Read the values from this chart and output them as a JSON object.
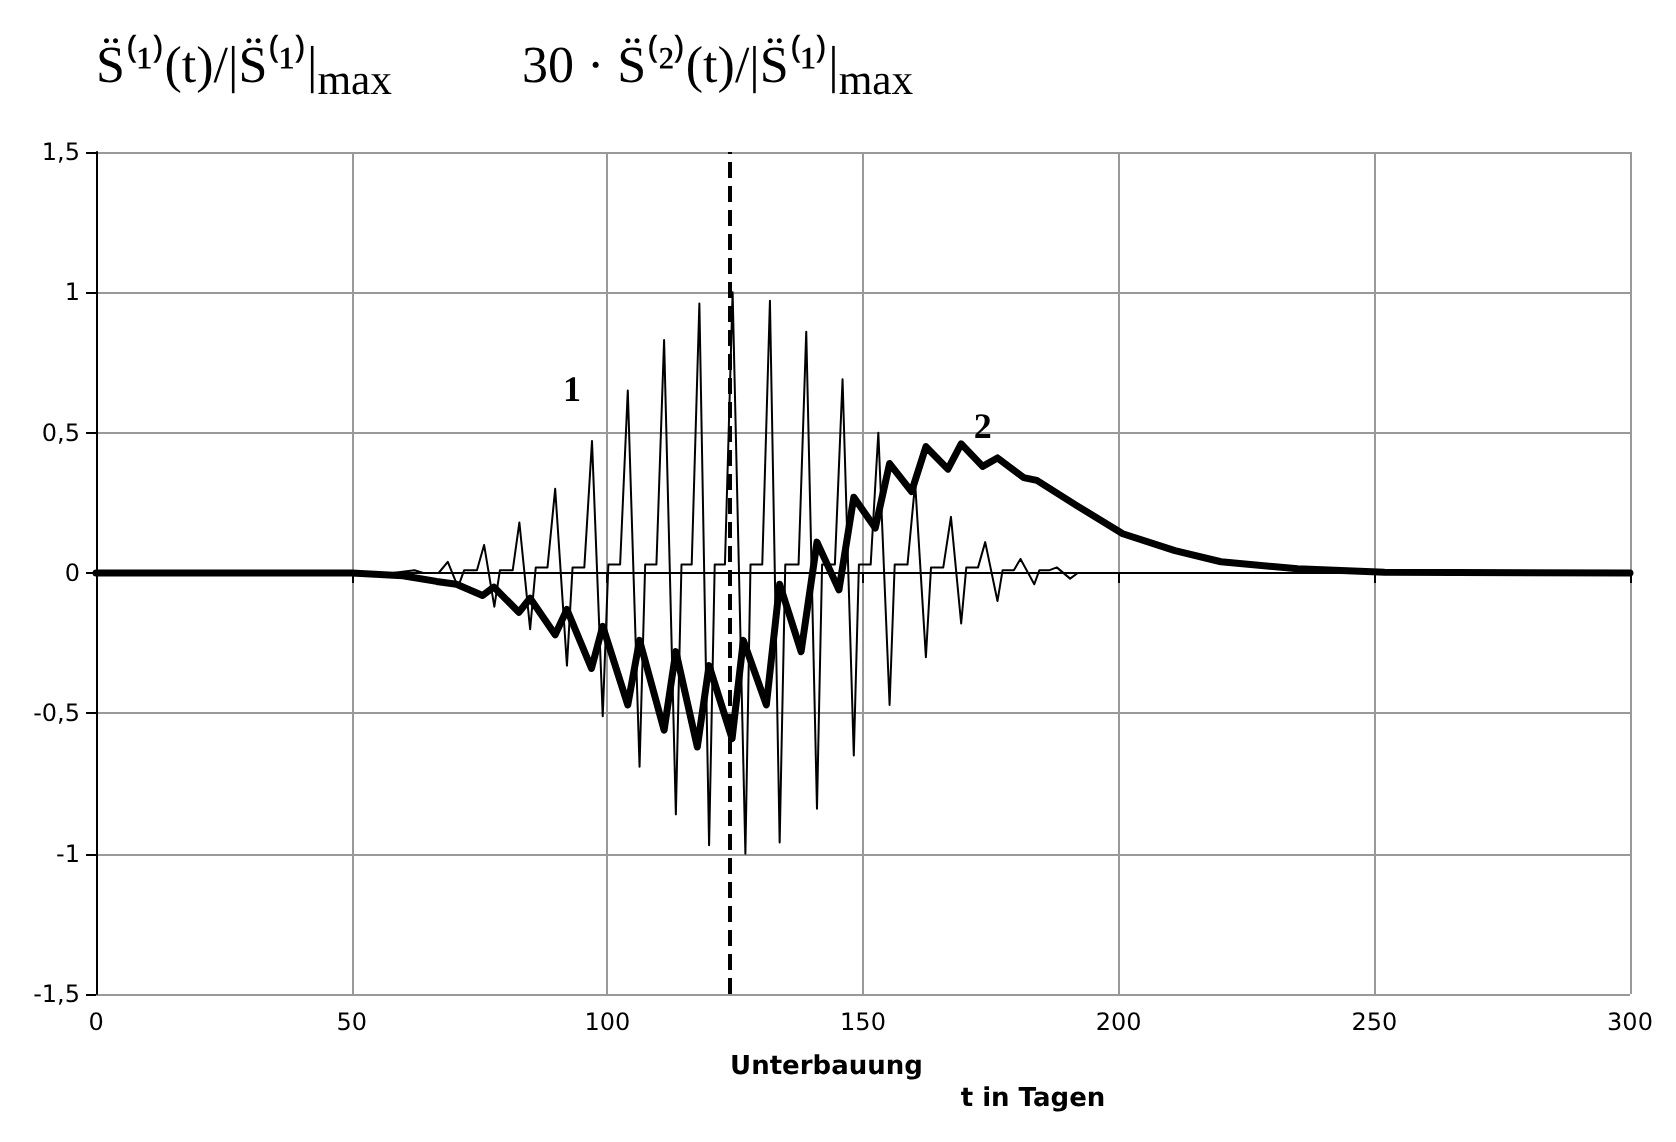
{
  "chart_data": {
    "type": "line",
    "ylabel": "S̈⁽¹⁾(t)/|S̈⁽¹⁾|$_{max}$          30 · S̈⁽²⁾(t)/|S̈⁽¹⁾|$_{max}$",
    "xlabel": "t in Tagen",
    "series": [
      {
        "name": "1",
        "color": "#000000",
        "x": [
          0,
          58,
          62.3,
          64,
          67,
          68.8,
          70.8,
          72,
          74.5,
          75.9,
          77.9,
          79,
          81.5,
          82.8,
          84.9,
          86,
          88.3,
          89.8,
          92.1,
          93.2,
          95.5,
          97,
          99.1,
          100.2,
          102.5,
          104,
          106.3,
          107.4,
          109.6,
          111.1,
          113.4,
          114.5,
          116.5,
          118,
          119.9,
          121,
          123,
          124.5,
          127,
          128,
          130.3,
          131.8,
          133.7,
          134.8,
          137.4,
          138.9,
          141,
          142,
          144.5,
          146,
          148.2,
          149.2,
          151.5,
          153,
          155.2,
          156.2,
          158.7,
          160.2,
          162.3,
          163.3,
          165.7,
          167.2,
          169.2,
          170.2,
          172.5,
          173.9,
          176.3,
          177.3,
          179.5,
          180.8,
          183.5,
          184.5,
          186.5,
          187.9,
          190.5,
          192,
          300
        ],
        "values": [
          0,
          0,
          0.01,
          0,
          0,
          0.04,
          -0.05,
          0.01,
          0.01,
          0.1,
          -0.12,
          0.01,
          0.01,
          0.18,
          -0.2,
          0.02,
          0.02,
          0.3,
          -0.33,
          0.02,
          0.02,
          0.47,
          -0.51,
          0.03,
          0.03,
          0.65,
          -0.69,
          0.03,
          0.03,
          0.83,
          -0.86,
          0.03,
          0.03,
          0.96,
          -0.97,
          0.03,
          0.03,
          1.0,
          -1.0,
          0.03,
          0.03,
          0.97,
          -0.96,
          0.03,
          0.03,
          0.86,
          -0.84,
          0.03,
          0.03,
          0.69,
          -0.65,
          0.03,
          0.03,
          0.5,
          -0.47,
          0.03,
          0.03,
          0.32,
          -0.3,
          0.02,
          0.02,
          0.2,
          -0.18,
          0.02,
          0.02,
          0.11,
          -0.1,
          0.01,
          0.01,
          0.05,
          -0.04,
          0.01,
          0.01,
          0.02,
          -0.02,
          0,
          0
        ]
      },
      {
        "name": "2",
        "color": "#000000",
        "x": [
          0,
          50,
          60,
          66.6,
          70.5,
          75.6,
          77.8,
          82.7,
          84.9,
          89.8,
          92.1,
          96.9,
          99.1,
          104,
          106.3,
          111.1,
          113.4,
          117.6,
          119.9,
          124.4,
          126.6,
          131.1,
          133.7,
          137.9,
          141,
          145.3,
          148.2,
          152.4,
          155.2,
          159.5,
          162.3,
          166.6,
          169.2,
          173.4,
          176.3,
          181.4,
          184,
          191.8,
          200.8,
          211,
          220,
          235,
          252,
          300
        ],
        "values": [
          0,
          0,
          -0.01,
          -0.03,
          -0.04,
          -0.08,
          -0.05,
          -0.14,
          -0.09,
          -0.22,
          -0.13,
          -0.34,
          -0.19,
          -0.47,
          -0.24,
          -0.56,
          -0.28,
          -0.62,
          -0.33,
          -0.59,
          -0.24,
          -0.47,
          -0.04,
          -0.28,
          0.11,
          -0.06,
          0.27,
          0.16,
          0.39,
          0.29,
          0.45,
          0.37,
          0.46,
          0.38,
          0.41,
          0.34,
          0.33,
          0.24,
          0.14,
          0.08,
          0.04,
          0.015,
          0.003,
          0
        ]
      }
    ],
    "ref_lines": [
      {
        "axis": "x",
        "value": 124,
        "label": "Unterbauung",
        "line_style": "dashed",
        "color": "#000000"
      }
    ],
    "xlim": [
      0,
      300
    ],
    "xticks": [
      0,
      50,
      100,
      150,
      200,
      250,
      300
    ],
    "ylim": [
      -1.5,
      1.5
    ],
    "yticks": [
      {
        "value": -1.5,
        "label": "-1,5"
      },
      {
        "value": -1,
        "label": "-1"
      },
      {
        "value": -0.5,
        "label": "-0,5"
      },
      {
        "value": 0,
        "label": "0"
      },
      {
        "value": 0.5,
        "label": "0,5"
      },
      {
        "value": 1,
        "label": "1"
      },
      {
        "value": 1.5,
        "label": "1,5"
      }
    ],
    "grid": true,
    "legend": false,
    "marker": "none",
    "line_style": "solid"
  }
}
